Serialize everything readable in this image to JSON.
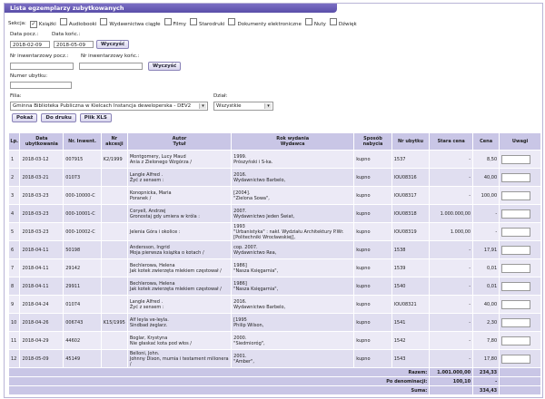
{
  "title": "Lista egzemplarzy zubytkowanych",
  "sekcja": {
    "label": "Sekcja:",
    "options": [
      {
        "label": "Książki",
        "checked": true
      },
      {
        "label": "Audiobooki",
        "checked": false
      },
      {
        "label": "Wydawnictwa ciągłe",
        "checked": false
      },
      {
        "label": "Filmy",
        "checked": false
      },
      {
        "label": "Starodruki",
        "checked": false
      },
      {
        "label": "Dokumenty elektroniczne",
        "checked": false
      },
      {
        "label": "Nuty",
        "checked": false
      },
      {
        "label": "Dźwięk",
        "checked": false
      }
    ]
  },
  "dates": {
    "from_label": "Data pocz.:",
    "to_label": "Data końc.:",
    "from_value": "2018-02-09",
    "to_value": "2018-05-09",
    "search_label": "Wyczyść"
  },
  "inventory": {
    "from_label": "Nr inwentarzowy pocz.:",
    "to_label": "Nr inwentarzowy końc.:",
    "from_value": "",
    "to_value": "",
    "search_label": "Wyczyść"
  },
  "removal": {
    "label": "Numer ubytku:",
    "value": ""
  },
  "filia": {
    "label": "Filia:",
    "value": "Gminna Biblioteka Publiczna w Kielcach Instancja deweloperska - DEV2"
  },
  "dzial": {
    "label": "Dział:",
    "value": "Wszystkie"
  },
  "buttons": {
    "show": "Pokaż",
    "print": "Do druku",
    "xls": "Plik XLS"
  },
  "columns": [
    "Lp.",
    "Data\nubytkowania",
    "Nr. Inwent.",
    "Nr\nakcesji",
    "Autor\nTytuł",
    "Rok wydania\nWydawca",
    "Sposób\nnabycia",
    "Nr ubytku",
    "Stara cena",
    "Cena",
    "Uwagi"
  ],
  "rows": [
    {
      "lp": "1",
      "data": "2018-03-12",
      "inw": "007915",
      "akc": "K2/1999",
      "autor": "Montgomery, Lucy Maud\nAnia z Zielonego Wzgórza /",
      "rok": "1999.\nPrószyński i S-ka.",
      "sposob": "kupno",
      "ubytek": "1537",
      "stara": "-",
      "cena": "8,50"
    },
    {
      "lp": "2",
      "data": "2018-03-21",
      "inw": "01073",
      "akc": "",
      "autor": "Langle Alfred .\nŻyć z sensem :",
      "rok": "2016.\nWydawnictwo Barbelo,",
      "sposob": "kupno",
      "ubytek": "IOU08316",
      "stara": "-",
      "cena": "40,00"
    },
    {
      "lp": "3",
      "data": "2018-03-23",
      "inw": "000-10000-C",
      "akc": "",
      "autor": "Konopnicka, Maria\nPoranek /",
      "rok": "[2004].\n\"Zielona Sowa\",",
      "sposob": "kupno",
      "ubytek": "IOU08317",
      "stara": "-",
      "cena": "100,00"
    },
    {
      "lp": "4",
      "data": "2018-03-23",
      "inw": "000-10001-C",
      "akc": "",
      "autor": "Coryell, Andrzej\nGronostaj gdy umiera w króla :",
      "rok": "2007.\nWydawnictwo Jeden Świat,",
      "sposob": "kupno",
      "ubytek": "IOU08318",
      "stara": "1.000.000,00",
      "cena": "-"
    },
    {
      "lp": "5",
      "data": "2018-03-23",
      "inw": "000-10002-C",
      "akc": "",
      "autor": "Jelenia Góra i okolice :",
      "rok": "1993\n\"Urbanistyka\" : nakł. Wydziału Architektury P.Wr. [Politechniki Wrocławskiej],",
      "sposob": "kupno",
      "ubytek": "IOU08319",
      "stara": "1.000,00",
      "cena": "-"
    },
    {
      "lp": "6",
      "data": "2018-04-11",
      "inw": "50198",
      "akc": "",
      "autor": "Andersson, Ingrid\nMoja pierwsza książka o kotach /",
      "rok": "cop. 2007.\nWydawnictwo Rea,",
      "sposob": "kupno",
      "ubytek": "1538",
      "stara": "-",
      "cena": "17,91"
    },
    {
      "lp": "7",
      "data": "2018-04-11",
      "inw": "29142",
      "akc": "",
      "autor": "Bechlerowa, Helena\nJak kotek zwierzęta mlekiem częstował /",
      "rok": "1986]\n\"Nasza Księgarnia\",",
      "sposob": "kupno",
      "ubytek": "1539",
      "stara": "-",
      "cena": "0,01"
    },
    {
      "lp": "8",
      "data": "2018-04-11",
      "inw": "29911",
      "akc": "",
      "autor": "Bechlerowa, Helena\nJak kotek zwierzęta mlekiem częstował /",
      "rok": "1986]\n\"Nasza Księgarnia\",",
      "sposob": "kupno",
      "ubytek": "1540",
      "stara": "-",
      "cena": "0,01"
    },
    {
      "lp": "9",
      "data": "2018-04-24",
      "inw": "01074",
      "akc": "",
      "autor": "Langle Alfred .\nŻyć z sensem :",
      "rok": "2016.\nWydawnictwo Barbelo,",
      "sposob": "kupno",
      "ubytek": "IOU08321",
      "stara": "-",
      "cena": "40,00"
    },
    {
      "lp": "10",
      "data": "2018-04-26",
      "inw": "006743",
      "akc": "K15/1995",
      "autor": "Alf leyla ve-leyla.\nSindbad żeglarz.",
      "rok": "[1995\nPhilip Wilson,",
      "sposob": "kupno",
      "ubytek": "1541",
      "stara": "-",
      "cena": "2,30"
    },
    {
      "lp": "11",
      "data": "2018-04-29",
      "inw": "44602",
      "akc": "",
      "autor": "Boglar, Krystyna\nNie głaskać kota pod włos /",
      "rok": "2000.\n\"Siedmioróg\",",
      "sposob": "kupno",
      "ubytek": "1542",
      "stara": "-",
      "cena": "7,80"
    },
    {
      "lp": "12",
      "data": "2018-05-09",
      "inw": "45149",
      "akc": "",
      "autor": "Belloni, John.\nJohnny Dixon, mumia i testament milionera /",
      "rok": "2001.\n\"Amber\",",
      "sposob": "kupno",
      "ubytek": "1543",
      "stara": "-",
      "cena": "17,80"
    }
  ],
  "summary": [
    {
      "label": "Razem:",
      "stara": "1.001.000,00",
      "cena": "234,33"
    },
    {
      "label": "Po denominacji:",
      "stara": "100,10",
      "cena": "-"
    },
    {
      "label": "Suma:",
      "stara": "",
      "cena": "334,43"
    }
  ],
  "colors": {
    "header": "#c9c6e6",
    "row_odd": "#eceaf6",
    "row_even": "#e0def0",
    "titlebar": "#5a4ea9"
  }
}
